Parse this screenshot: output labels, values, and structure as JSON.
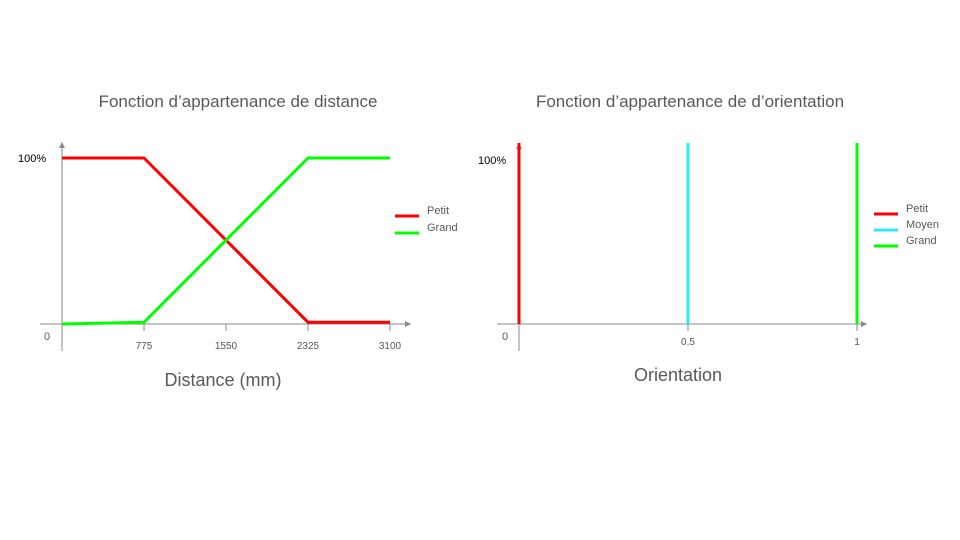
{
  "chart_data": [
    {
      "type": "line",
      "title": "Fonction d’appartenance de distance",
      "xlabel": "Distance (mm)",
      "ylabel": "",
      "xlim": [
        0,
        3100
      ],
      "ylim": [
        0,
        100
      ],
      "xticks": [
        775,
        1550,
        2325,
        3100
      ],
      "xtick_labels": [
        "775",
        "1550",
        "2325",
        "3100"
      ],
      "origin_label": "0",
      "ytick_label": "100%",
      "legend_position": "right",
      "series": [
        {
          "name": "Petit",
          "color": "#ff0000",
          "x": [
            0,
            775,
            2325,
            3100
          ],
          "y": [
            100,
            100,
            1,
            1
          ]
        },
        {
          "name": "Grand",
          "color": "#00ff00",
          "x": [
            0,
            775,
            2325,
            3100
          ],
          "y": [
            0,
            1,
            100,
            100
          ]
        }
      ]
    },
    {
      "type": "line",
      "title": "Fonction d’appartenance de d’orientation",
      "xlabel": "Orientation",
      "ylabel": "",
      "xlim": [
        0,
        1
      ],
      "ylim": [
        0,
        100
      ],
      "xticks": [
        0.5,
        1
      ],
      "xtick_labels": [
        "0.5",
        "1"
      ],
      "origin_label": "0",
      "ytick_label": "100%",
      "legend_position": "right",
      "series": [
        {
          "name": "Petit",
          "color": "#ff0000",
          "x": [
            0,
            0
          ],
          "y": [
            0,
            100
          ]
        },
        {
          "name": "Moyen",
          "color": "#33e6f0",
          "x": [
            0.5,
            0.5
          ],
          "y": [
            0,
            100
          ]
        },
        {
          "name": "Grand",
          "color": "#00ff00",
          "x": [
            1,
            1
          ],
          "y": [
            0,
            100
          ]
        }
      ]
    }
  ]
}
